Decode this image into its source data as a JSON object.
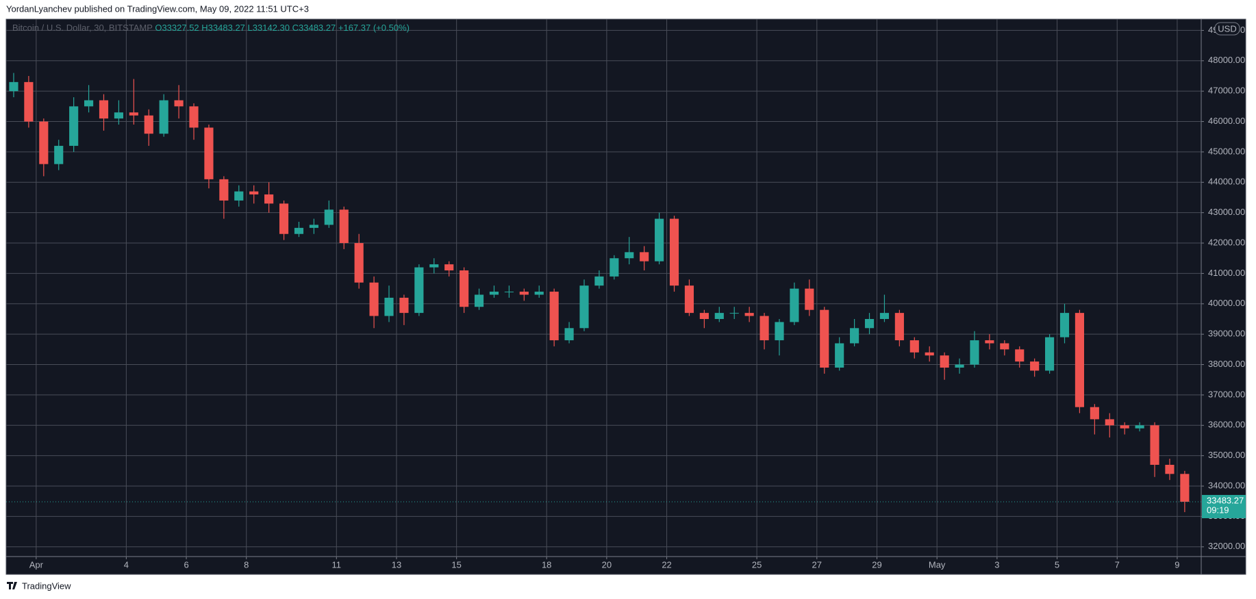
{
  "header": {
    "text": "YordanLyanchev published on TradingView.com, May 09, 2022 11:51 UTC+3"
  },
  "footer": {
    "brand": "TradingView"
  },
  "chart_data": {
    "type": "candlestick",
    "legend": {
      "symbol": "Bitcoin / U.S. Dollar, 30, BITSTAMP",
      "open": "O33327.52",
      "high": "H33483.27",
      "low": "L33142.30",
      "close": "C33483.27",
      "change": "+167.37 (+0.50%)"
    },
    "currency": "USD",
    "countdown": "09:19",
    "up_color": "#26a69a",
    "down_color": "#ef5350",
    "grid": true,
    "xlim": [
      0,
      39.8
    ],
    "ylim": [
      31680,
      49370
    ],
    "xticks": [
      {
        "value": 1,
        "label": "Apr"
      },
      4,
      6,
      8,
      11,
      13,
      15,
      18,
      20,
      22,
      25,
      27,
      29,
      {
        "value": 31,
        "label": "May"
      },
      {
        "value": 33,
        "label": "3"
      },
      {
        "value": 35,
        "label": "5"
      },
      {
        "value": 37,
        "label": "7"
      },
      {
        "value": 39,
        "label": "9"
      }
    ],
    "yticks": [
      {
        "value": 32000,
        "label": "32000.00"
      },
      {
        "value": 33000,
        "label": "33000.00"
      },
      {
        "value": 34000,
        "label": "34000.00"
      },
      {
        "value": 35000,
        "label": "35000.00"
      },
      {
        "value": 36000,
        "label": "36000.00"
      },
      {
        "value": 37000,
        "label": "37000.00"
      },
      {
        "value": 38000,
        "label": "38000.00"
      },
      {
        "value": 39000,
        "label": "39000.00"
      },
      {
        "value": 40000,
        "label": "40000.00"
      },
      {
        "value": 41000,
        "label": "41000.00"
      },
      {
        "value": 42000,
        "label": "42000.00"
      },
      {
        "value": 43000,
        "label": "43000.00"
      },
      {
        "value": 44000,
        "label": "44000.00"
      },
      {
        "value": 45000,
        "label": "45000.00"
      },
      {
        "value": 46000,
        "label": "46000.00"
      },
      {
        "value": 47000,
        "label": "47000.00"
      },
      {
        "value": 48000,
        "label": "48000.00"
      },
      {
        "value": 49000,
        "label": "49000.00"
      }
    ],
    "x": [
      0,
      0.5,
      1,
      1.5,
      2,
      2.5,
      3,
      3.5,
      4,
      4.5,
      5,
      5.5,
      6,
      6.5,
      7,
      7.5,
      8,
      8.5,
      9,
      9.5,
      10,
      10.5,
      11,
      11.5,
      12,
      12.5,
      13,
      13.5,
      14,
      14.5,
      15,
      15.5,
      16,
      16.5,
      17,
      17.5,
      18,
      18.5,
      19,
      19.5,
      20,
      20.5,
      21,
      21.5,
      22,
      22.5,
      23,
      23.5,
      24,
      24.5,
      25,
      25.5,
      26,
      26.5,
      27,
      27.5,
      28,
      28.5,
      29,
      29.5,
      30,
      30.5,
      31,
      31.5,
      32,
      32.5,
      33,
      33.5,
      34,
      34.5,
      35,
      35.5,
      36,
      36.5,
      37,
      37.5,
      38,
      38.5,
      39
    ],
    "open": [
      47000,
      47300,
      46000,
      44600,
      45200,
      46500,
      46700,
      46100,
      46300,
      46200,
      45600,
      46700,
      46500,
      45800,
      44100,
      43400,
      43700,
      43600,
      43300,
      42300,
      42500,
      42600,
      43100,
      42000,
      40700,
      39600,
      40200,
      39700,
      41200,
      41300,
      41100,
      39900,
      40300,
      40400,
      40400,
      40300,
      40400,
      38800,
      39200,
      40600,
      40900,
      41500,
      41700,
      41400,
      42800,
      40600,
      39700,
      39500,
      39700,
      39700,
      39600,
      38800,
      39400,
      40500,
      39800,
      37900,
      38700,
      39200,
      39500,
      39700,
      38800,
      38400,
      38300,
      37900,
      38000,
      38800,
      38700,
      38500,
      38100,
      37800,
      38900,
      39700,
      36600,
      36200,
      36000,
      35900,
      36000,
      34700,
      34400
    ],
    "high": [
      47600,
      47500,
      46100,
      45400,
      46800,
      47200,
      46900,
      46700,
      47400,
      46400,
      46900,
      47200,
      46600,
      45900,
      44200,
      43900,
      43900,
      44000,
      43400,
      42700,
      42800,
      43400,
      43200,
      42300,
      40900,
      40600,
      40300,
      41300,
      41500,
      41400,
      41200,
      40500,
      40600,
      40600,
      40500,
      40600,
      40500,
      39400,
      40800,
      41100,
      41600,
      42200,
      41900,
      43000,
      42900,
      40800,
      39800,
      39900,
      39900,
      39900,
      39700,
      39500,
      40700,
      40800,
      39900,
      38900,
      39500,
      39700,
      40300,
      39800,
      38900,
      38600,
      38400,
      38200,
      39100,
      39000,
      38800,
      38600,
      38200,
      39000,
      40000,
      39800,
      36700,
      36400,
      36100,
      36100,
      36100,
      34900,
      34500
    ],
    "low": [
      46800,
      45800,
      44200,
      44400,
      45000,
      46300,
      45700,
      45900,
      45900,
      45200,
      45500,
      46100,
      45400,
      43800,
      42800,
      43200,
      43300,
      43000,
      42100,
      42200,
      42300,
      42500,
      41800,
      40500,
      39200,
      39400,
      39300,
      39600,
      41000,
      40900,
      39700,
      39800,
      40200,
      40200,
      40100,
      40200,
      38600,
      38700,
      39100,
      40500,
      40800,
      41300,
      41100,
      41300,
      40400,
      39600,
      39200,
      39400,
      39500,
      39400,
      38500,
      38300,
      39300,
      39600,
      37700,
      37800,
      38600,
      39000,
      39400,
      38600,
      38200,
      38100,
      37500,
      37700,
      37900,
      38500,
      38300,
      37900,
      37600,
      37700,
      38700,
      36400,
      35700,
      35600,
      35700,
      35800,
      34300,
      34200,
      33142.3
    ],
    "close": [
      47300,
      46000,
      44600,
      45200,
      46500,
      46700,
      46100,
      46300,
      46200,
      45600,
      46700,
      46500,
      45800,
      44100,
      43400,
      43700,
      43600,
      43300,
      42300,
      42500,
      42600,
      43100,
      42000,
      40700,
      39600,
      40200,
      39700,
      41200,
      41300,
      41100,
      39900,
      40300,
      40400,
      40400,
      40300,
      40400,
      38800,
      39200,
      40600,
      40900,
      41500,
      41700,
      41400,
      42800,
      40600,
      39700,
      39500,
      39700,
      39700,
      39600,
      38800,
      39400,
      40500,
      39800,
      37900,
      38700,
      39200,
      39500,
      39700,
      38800,
      38400,
      38300,
      37900,
      38000,
      38800,
      38700,
      38500,
      38100,
      37800,
      38900,
      39700,
      36600,
      36200,
      36000,
      35900,
      36000,
      34700,
      34400,
      33483.27
    ]
  }
}
